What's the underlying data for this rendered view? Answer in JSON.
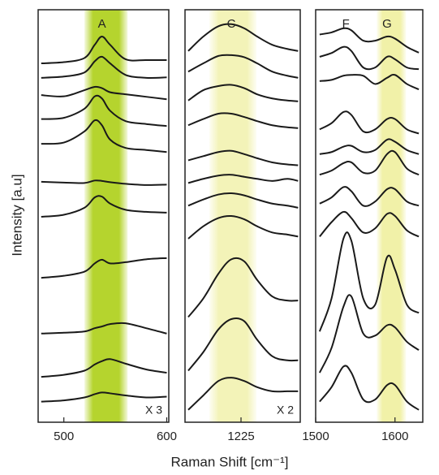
{
  "chart_data": [
    {
      "type": "line",
      "xlim": [
        475,
        602
      ],
      "xticks": [
        500,
        600
      ],
      "ylim": [
        0,
        100
      ],
      "color": "#1a1a1a",
      "bands": [
        {
          "range": [
            520,
            562
          ],
          "color": "#b5d42e"
        }
      ],
      "peaks": [
        {
          "label": "A",
          "x": 537
        }
      ],
      "note": "X 3",
      "x": [
        478,
        500,
        520,
        530,
        537,
        545,
        560,
        580,
        600
      ],
      "series": [
        {
          "values": [
            87.0,
            87.3,
            88.3,
            91.5,
            93.5,
            91.5,
            88.0,
            87.8,
            87.8
          ]
        },
        {
          "values": [
            83.5,
            83.8,
            84.8,
            87.5,
            88.6,
            87.0,
            84.2,
            83.5,
            83.6
          ]
        },
        {
          "values": [
            79.3,
            79.0,
            80.5,
            81.3,
            81.0,
            80.0,
            79.5,
            78.9,
            78.3
          ]
        },
        {
          "values": [
            73.5,
            73.8,
            76.0,
            79.0,
            78.5,
            75.5,
            73.0,
            72.3,
            71.8
          ]
        },
        {
          "values": [
            67.5,
            67.8,
            70.5,
            73.2,
            72.0,
            68.5,
            66.5,
            66.0,
            65.5
          ]
        },
        {
          "values": [
            58.3,
            58.1,
            58.0,
            58.6,
            58.5,
            58.2,
            57.8,
            57.5,
            57.6
          ]
        },
        {
          "values": [
            49.8,
            50.3,
            52.0,
            54.5,
            54.7,
            53.0,
            51.5,
            51.0,
            50.8
          ]
        },
        {
          "values": [
            35.0,
            35.5,
            36.5,
            38.5,
            39.4,
            38.5,
            38.8,
            39.5,
            39.8
          ]
        },
        {
          "values": [
            21.5,
            21.7,
            22.0,
            22.8,
            23.2,
            23.8,
            24.0,
            22.8,
            21.5
          ]
        },
        {
          "values": [
            11.0,
            11.5,
            12.5,
            14.0,
            14.8,
            15.3,
            14.2,
            12.8,
            12.0
          ]
        },
        {
          "values": [
            5.0,
            5.3,
            6.0,
            6.8,
            7.2,
            7.0,
            6.5,
            6.0,
            6.2
          ]
        }
      ]
    },
    {
      "type": "line",
      "xlim": [
        965,
        1500
      ],
      "xticks": [
        1225
      ],
      "ylim": [
        0,
        100
      ],
      "color": "#1a1a1a",
      "bands": [
        {
          "range": [
            1078,
            1297
          ],
          "color": "#f3f3b8"
        }
      ],
      "peaks": [
        {
          "label": "C",
          "x": 1180
        }
      ],
      "note": "X 2",
      "x": [
        980,
        1050,
        1120,
        1180,
        1240,
        1300,
        1370,
        1440,
        1490
      ],
      "series": [
        {
          "values": [
            90.0,
            93.5,
            96.0,
            96.5,
            95.5,
            93.5,
            91.5,
            90.5,
            90.0
          ]
        },
        {
          "values": [
            85.0,
            87.0,
            88.8,
            89.0,
            88.5,
            87.0,
            85.0,
            84.0,
            83.5
          ]
        },
        {
          "values": [
            78.0,
            80.5,
            81.5,
            81.8,
            81.0,
            79.5,
            78.5,
            78.0,
            77.8
          ]
        },
        {
          "values": [
            72.0,
            73.5,
            74.8,
            74.8,
            74.0,
            73.0,
            72.0,
            71.5,
            71.3
          ]
        },
        {
          "values": [
            63.5,
            64.5,
            65.5,
            65.8,
            65.0,
            64.0,
            63.0,
            62.5,
            62.3
          ]
        },
        {
          "values": [
            58.0,
            59.0,
            59.8,
            60.0,
            59.5,
            59.0,
            58.5,
            59.0,
            58.5
          ]
        },
        {
          "values": [
            52.5,
            54.0,
            55.2,
            55.5,
            55.0,
            54.0,
            53.0,
            52.5,
            52.0
          ]
        },
        {
          "values": [
            44.5,
            47.5,
            49.5,
            50.0,
            49.2,
            47.5,
            46.0,
            45.5,
            45.0
          ]
        },
        {
          "values": [
            25.5,
            30.0,
            36.0,
            39.5,
            39.0,
            34.5,
            30.5,
            29.5,
            29.5
          ]
        },
        {
          "values": [
            12.5,
            17.0,
            22.5,
            25.0,
            24.5,
            20.0,
            16.0,
            15.0,
            15.0
          ]
        },
        {
          "values": [
            3.0,
            6.5,
            10.0,
            10.8,
            10.0,
            8.5,
            7.5,
            7.5,
            7.5
          ]
        }
      ]
    },
    {
      "type": "line",
      "xlim": [
        1500,
        1635
      ],
      "xticks": [
        1500,
        1600
      ],
      "ylim": [
        0,
        100
      ],
      "color": "#1a1a1a",
      "bands": [
        {
          "range": [
            1577,
            1614
          ],
          "color": "#f1f1a8"
        }
      ],
      "peaks": [
        {
          "label": "F",
          "x": 1538
        },
        {
          "label": "G",
          "x": 1590
        }
      ],
      "x": [
        1505,
        1520,
        1535,
        1545,
        1560,
        1575,
        1590,
        1600,
        1615,
        1630
      ],
      "series": [
        {
          "values": [
            94.0,
            94.5,
            95.5,
            95.0,
            92.5,
            92.5,
            93.5,
            93.0,
            91.0,
            89.6
          ]
        },
        {
          "values": [
            88.6,
            89.5,
            91.0,
            90.0,
            86.0,
            86.0,
            88.6,
            88.0,
            86.0,
            85.6
          ]
        },
        {
          "values": [
            82.7,
            83.0,
            84.0,
            84.2,
            84.0,
            82.0,
            83.5,
            84.2,
            82.0,
            80.7
          ]
        },
        {
          "values": [
            71.0,
            72.5,
            75.2,
            74.5,
            70.5,
            71.0,
            73.5,
            73.5,
            71.0,
            70.0
          ]
        },
        {
          "values": [
            65.0,
            65.5,
            66.8,
            67.0,
            65.5,
            66.0,
            68.5,
            68.0,
            66.0,
            65.0
          ]
        },
        {
          "values": [
            60.0,
            61.0,
            62.8,
            63.0,
            60.5,
            61.0,
            65.0,
            65.5,
            61.5,
            60.0
          ]
        },
        {
          "values": [
            53.0,
            54.5,
            57.0,
            56.0,
            52.5,
            53.5,
            56.5,
            56.5,
            53.5,
            52.5
          ]
        },
        {
          "values": [
            45.0,
            48.5,
            51.0,
            49.5,
            46.0,
            47.0,
            50.5,
            50.0,
            46.5,
            45.0
          ]
        },
        {
          "values": [
            22.0,
            30.0,
            44.5,
            44.0,
            30.0,
            28.5,
            40.0,
            37.0,
            28.5,
            26.5
          ]
        },
        {
          "values": [
            12.0,
            18.0,
            28.0,
            30.5,
            21.5,
            21.0,
            23.5,
            23.0,
            19.5,
            17.5
          ]
        },
        {
          "values": [
            5.0,
            8.5,
            13.5,
            12.0,
            5.5,
            5.5,
            9.0,
            9.0,
            5.0,
            3.0
          ]
        }
      ]
    }
  ],
  "figure": {
    "xlabel": "Raman Shift [cm⁻¹]",
    "ylabel": "Intensity [a.u]"
  }
}
